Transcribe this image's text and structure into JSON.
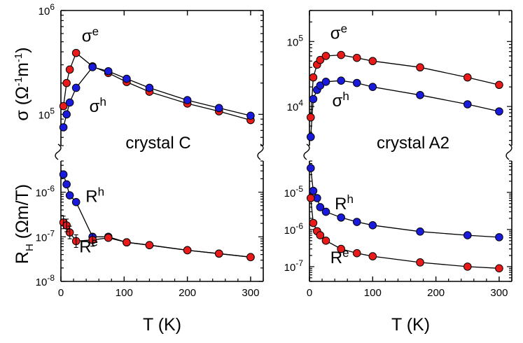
{
  "chart_data": [
    {
      "panel": "left",
      "type": "scatter",
      "title": "crystal C",
      "xlabel": "T (K)",
      "xlim": [
        0,
        320
      ],
      "xticks": [
        0,
        100,
        200,
        300
      ],
      "top": {
        "ylabel": "σ (Ω⁻¹m⁻¹)",
        "ylabel_parts": {
          "base": "σ (Ω",
          "sup1": "-1",
          "mid": "m",
          "sup2": "-1",
          "end": ")"
        },
        "ylim": [
          50000,
          1000000
        ],
        "yticks": [
          {
            "exp": "5",
            "value": 100000
          },
          {
            "exp": "6",
            "value": 1000000
          }
        ],
        "series": [
          {
            "name": "σ^e",
            "color": "#e81a1a",
            "x": [
              4,
              9,
              14,
              24,
              50,
              75,
              104,
              140,
              200,
              250,
              300
            ],
            "y": [
              120000,
              200000,
              270000,
              390000,
              290000,
              250000,
              205000,
              165000,
              127000,
              107000,
              88000
            ]
          },
          {
            "name": "σ^h",
            "color": "#1a1adc",
            "x": [
              4,
              9,
              14,
              24,
              50,
              75,
              104,
              140,
              200,
              250,
              300
            ],
            "y": [
              75000,
              100000,
              130000,
              180000,
              285000,
              260000,
              220000,
              180000,
              137000,
              115000,
              97000
            ]
          }
        ],
        "annotations": [
          {
            "base": "σ",
            "sup": "e",
            "x": 33,
            "y": 500000
          },
          {
            "base": "σ",
            "sup": "h",
            "x": 45,
            "y": 105000
          }
        ]
      },
      "bottom": {
        "ylabel_parts": {
          "base": "R",
          "sub": "H",
          "end": " (Ωm/T)"
        },
        "ylim": [
          1e-08,
          5e-06
        ],
        "yticks": [
          {
            "exp": "-8",
            "value": 1e-08
          },
          {
            "exp": "-7",
            "value": 1e-07
          },
          {
            "exp": "-6",
            "value": 1e-06
          }
        ],
        "series": [
          {
            "name": "R^h",
            "color": "#1a1adc",
            "x": [
              4,
              9,
              14,
              24,
              50,
              75,
              104,
              140,
              200,
              250,
              300
            ],
            "y": [
              2.5e-06,
              1.5e-06,
              8.5e-07,
              6e-07,
              1e-07,
              1e-07,
              7.5e-08,
              6.5e-08,
              5e-08,
              4.2e-08,
              3.5e-08
            ]
          },
          {
            "name": "R^e",
            "color": "#e81a1a",
            "x": [
              4,
              9,
              14,
              24,
              50,
              75,
              104,
              140,
              200,
              250,
              300
            ],
            "y": [
              2.1e-07,
              1.8e-07,
              1.25e-07,
              8e-08,
              8.5e-08,
              9.5e-08,
              7.5e-08,
              6.5e-08,
              5e-08,
              4.2e-08,
              3.5e-08
            ]
          }
        ],
        "annotations": [
          {
            "base": "R",
            "sup": "h",
            "x": 39,
            "y": 6e-07
          },
          {
            "base": "R",
            "sup": "e",
            "x": 29,
            "y": 4.5e-08
          }
        ]
      }
    },
    {
      "panel": "right",
      "type": "scatter",
      "title": "crystal A2",
      "xlabel": "T (K)",
      "xlim": [
        0,
        320
      ],
      "xticks": [
        0,
        100,
        200,
        300
      ],
      "top": {
        "ylim": [
          2500,
          300000
        ],
        "yticks": [
          {
            "exp": "4",
            "value": 10000
          },
          {
            "exp": "5",
            "value": 100000
          }
        ],
        "series": [
          {
            "name": "σ^e",
            "color": "#e81a1a",
            "x": [
              2,
              6,
              12,
              17,
              26,
              50,
              75,
              100,
              175,
              250,
              300
            ],
            "y": [
              6800,
              28000,
              44000,
              52000,
              60000,
              62000,
              56000,
              50000,
              40000,
              28000,
              21500
            ]
          },
          {
            "name": "σ^h",
            "color": "#1a1adc",
            "x": [
              2,
              6,
              12,
              17,
              26,
              50,
              75,
              100,
              175,
              250,
              300
            ],
            "y": [
              3400,
              13000,
              18000,
              21000,
              24000,
              25000,
              23000,
              20000,
              15000,
              10800,
              8400
            ]
          }
        ],
        "annotations": [
          {
            "base": "σ",
            "sup": "e",
            "x": 33,
            "y": 110000
          },
          {
            "base": "σ",
            "sup": "h",
            "x": 36,
            "y": 10000
          }
        ]
      },
      "bottom": {
        "ylim": [
          4e-08,
          7e-05
        ],
        "yticks": [
          {
            "exp": "-7",
            "value": 1e-07
          },
          {
            "exp": "-6",
            "value": 1e-06
          },
          {
            "exp": "-5",
            "value": 1e-05
          }
        ],
        "series": [
          {
            "name": "R^h",
            "color": "#1a1adc",
            "x": [
              2,
              6,
              12,
              17,
              26,
              50,
              75,
              100,
              175,
              250,
              300
            ],
            "y": [
              4.5e-05,
              1.1e-05,
              7e-06,
              4e-06,
              3e-06,
              2.1e-06,
              1.6e-06,
              1.3e-06,
              8.8e-07,
              7e-07,
              6.2e-07
            ]
          },
          {
            "name": "R^e",
            "color": "#e81a1a",
            "x": [
              2,
              6,
              12,
              17,
              26,
              50,
              75,
              100,
              175,
              250,
              300
            ],
            "y": [
              7e-06,
              1.5e-06,
              9e-07,
              7e-07,
              5e-07,
              3e-07,
              2.3e-07,
              1.9e-07,
              1.3e-07,
              1e-07,
              9e-08
            ]
          }
        ],
        "annotations": [
          {
            "base": "R",
            "sup": "h",
            "x": 40,
            "y": 3.5e-06
          },
          {
            "base": "R",
            "sup": "e",
            "x": 33,
            "y": 1.25e-07
          }
        ]
      }
    }
  ]
}
